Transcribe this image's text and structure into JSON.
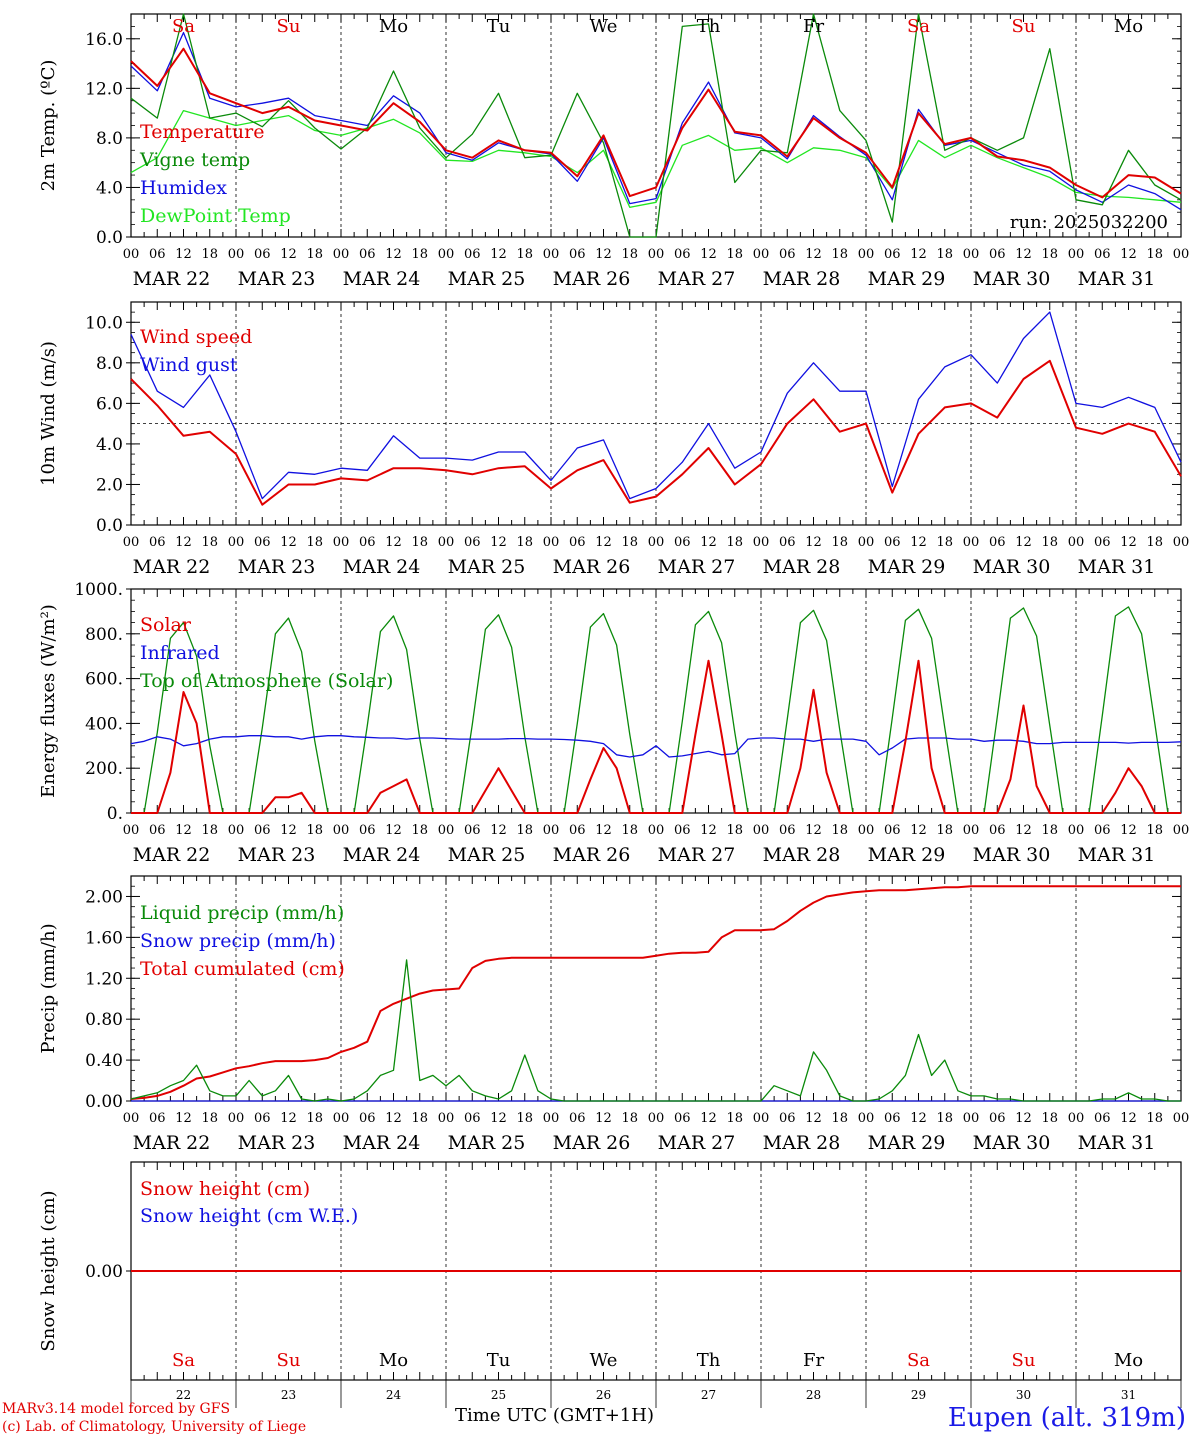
{
  "colors": {
    "red": "#e00000",
    "blue": "#1010e0",
    "green": "#0a8a0a",
    "lightgreen": "#22e622",
    "grid": "#000000"
  },
  "run_label": "run: 2025032200",
  "dates": [
    "MAR 22",
    "MAR 23",
    "MAR 24",
    "MAR 25",
    "MAR 26",
    "MAR 27",
    "MAR 28",
    "MAR 29",
    "MAR 30",
    "MAR 31"
  ],
  "weekdays": [
    "Sa",
    "Su",
    "Mo",
    "Tu",
    "We",
    "Th",
    "Fr",
    "Sa",
    "Su",
    "Mo"
  ],
  "weekday_colors": [
    "red",
    "red",
    "black",
    "black",
    "black",
    "black",
    "black",
    "red",
    "red",
    "black"
  ],
  "hour_ticks": [
    "00",
    "06",
    "12",
    "18"
  ],
  "bottom_day_numbers": [
    "22",
    "23",
    "24",
    "25",
    "26",
    "27",
    "28",
    "29",
    "30",
    "31"
  ],
  "footer": {
    "model_line1": "MARv3.14 model forced by GFS",
    "model_line2": "(c) Lab. of Climatology, University of Liege",
    "axis_title": "Time UTC (GMT+1H)",
    "station": "Eupen (alt. 319m)"
  },
  "chart_data": [
    {
      "type": "line",
      "ylabel": "2m Temp. (ºC)",
      "ylim": [
        0,
        18
      ],
      "yticks": [
        "0.0",
        "4.0",
        "8.0",
        "12.0",
        "16.0"
      ],
      "ytick_values": [
        0,
        4,
        8,
        12,
        16
      ],
      "x_hours": [
        0,
        6,
        12,
        18,
        24,
        30,
        36,
        42,
        48,
        54,
        60,
        66,
        72,
        78,
        84,
        90,
        96,
        102,
        108,
        114,
        120,
        126,
        132,
        138,
        144,
        150,
        156,
        162,
        168,
        174,
        180,
        186,
        192,
        198,
        204,
        210,
        216,
        222,
        228,
        234,
        240
      ],
      "series": [
        {
          "name": "Temperature",
          "color": "red",
          "values": [
            14.2,
            12.2,
            15.2,
            11.6,
            10.8,
            10.0,
            10.5,
            9.4,
            9.0,
            8.6,
            10.8,
            9.3,
            7.0,
            6.4,
            7.8,
            7.0,
            6.8,
            4.9,
            8.2,
            3.3,
            4.0,
            8.8,
            11.9,
            8.5,
            8.2,
            6.5,
            9.6,
            8.0,
            6.8,
            4.0,
            10.0,
            7.5,
            8.0,
            6.5,
            6.2,
            5.6,
            4.2,
            3.2,
            5.0,
            4.8,
            3.5
          ]
        },
        {
          "name": "Vigne temp",
          "color": "green",
          "values": [
            11.2,
            9.6,
            18.0,
            9.6,
            10.0,
            8.9,
            11.0,
            8.8,
            7.1,
            8.8,
            13.4,
            8.8,
            6.4,
            8.3,
            11.6,
            6.4,
            6.6,
            11.6,
            7.6,
            0.0,
            0.0,
            17.0,
            17.2,
            4.4,
            7.0,
            6.8,
            18.0,
            10.2,
            7.8,
            1.2,
            18.0,
            7.0,
            8.0,
            7.0,
            8.0,
            15.2,
            3.0,
            2.6,
            7.0,
            4.2,
            3.0
          ]
        },
        {
          "name": "Humidex",
          "color": "blue",
          "values": [
            13.8,
            11.8,
            16.5,
            11.2,
            10.5,
            10.8,
            11.2,
            9.8,
            9.4,
            9.0,
            11.4,
            10.0,
            6.8,
            6.2,
            7.6,
            7.0,
            6.7,
            4.5,
            8.0,
            2.7,
            3.1,
            9.2,
            12.5,
            8.4,
            8.0,
            6.3,
            9.8,
            8.1,
            6.6,
            3.0,
            10.3,
            7.4,
            7.8,
            6.8,
            5.8,
            5.3,
            3.8,
            2.8,
            4.2,
            3.5,
            2.2
          ]
        },
        {
          "name": "DewPoint Temp",
          "color": "lightgreen",
          "values": [
            5.2,
            6.4,
            10.2,
            9.6,
            9.0,
            9.4,
            9.8,
            8.6,
            8.2,
            8.8,
            9.5,
            8.4,
            6.2,
            6.1,
            7.0,
            6.8,
            6.5,
            5.2,
            7.0,
            2.4,
            2.8,
            7.4,
            8.2,
            7.0,
            7.2,
            6.0,
            7.2,
            7.0,
            6.4,
            3.9,
            7.8,
            6.4,
            7.4,
            6.4,
            5.6,
            4.8,
            3.6,
            3.3,
            3.2,
            3.0,
            2.8
          ]
        }
      ]
    },
    {
      "type": "line",
      "ylabel": "10m Wind (m/s)",
      "ylim": [
        0,
        11
      ],
      "yticks": [
        "0.0",
        "2.0",
        "4.0",
        "6.0",
        "8.0",
        "10.0"
      ],
      "ytick_values": [
        0,
        2,
        4,
        6,
        8,
        10
      ],
      "reference_line": 5,
      "x_hours": [
        0,
        6,
        12,
        18,
        24,
        30,
        36,
        42,
        48,
        54,
        60,
        66,
        72,
        78,
        84,
        90,
        96,
        102,
        108,
        114,
        120,
        126,
        132,
        138,
        144,
        150,
        156,
        162,
        168,
        174,
        180,
        186,
        192,
        198,
        204,
        210,
        216,
        222,
        228,
        234,
        240
      ],
      "series": [
        {
          "name": "Wind speed",
          "color": "red",
          "values": [
            7.2,
            5.9,
            4.4,
            4.6,
            3.5,
            1.0,
            2.0,
            2.0,
            2.3,
            2.2,
            2.8,
            2.8,
            2.7,
            2.5,
            2.8,
            2.9,
            1.8,
            2.7,
            3.2,
            1.1,
            1.4,
            2.5,
            3.8,
            2.0,
            3.0,
            5.0,
            6.2,
            4.6,
            5.0,
            1.6,
            4.5,
            5.8,
            6.0,
            5.3,
            7.2,
            8.1,
            4.8,
            4.5,
            5.0,
            4.6,
            2.4
          ]
        },
        {
          "name": "Wind gust",
          "color": "blue",
          "values": [
            9.4,
            6.6,
            5.8,
            7.4,
            4.6,
            1.3,
            2.6,
            2.5,
            2.8,
            2.7,
            4.4,
            3.3,
            3.3,
            3.2,
            3.6,
            3.6,
            2.2,
            3.8,
            4.2,
            1.3,
            1.8,
            3.1,
            5.0,
            2.8,
            3.6,
            6.5,
            8.0,
            6.6,
            6.6,
            1.9,
            6.2,
            7.8,
            8.4,
            7.0,
            9.2,
            10.5,
            6.0,
            5.8,
            6.3,
            5.8,
            3.1
          ]
        }
      ]
    },
    {
      "type": "line",
      "ylabel": "Energy fluxes (W/m²)",
      "ylim": [
        0,
        1000
      ],
      "yticks": [
        "0.",
        "200.",
        "400.",
        "600.",
        "800.",
        "1000."
      ],
      "ytick_values": [
        0,
        200,
        400,
        600,
        800,
        1000
      ],
      "x_hours": [
        0,
        3,
        6,
        9,
        12,
        15,
        18,
        21,
        24,
        27,
        30,
        33,
        36,
        39,
        42,
        45,
        48,
        51,
        54,
        57,
        60,
        63,
        66,
        69,
        72,
        75,
        78,
        81,
        84,
        87,
        90,
        93,
        96,
        99,
        102,
        105,
        108,
        111,
        114,
        117,
        120,
        123,
        126,
        129,
        132,
        135,
        138,
        141,
        144,
        147,
        150,
        153,
        156,
        159,
        162,
        165,
        168,
        171,
        174,
        177,
        180,
        183,
        186,
        189,
        192,
        195,
        198,
        201,
        204,
        207,
        210,
        213,
        216,
        219,
        222,
        225,
        228,
        231,
        234,
        237,
        240
      ],
      "series": [
        {
          "name": "Solar",
          "color": "red",
          "values": [
            0,
            0,
            0,
            180,
            540,
            400,
            0,
            0,
            0,
            0,
            0,
            70,
            70,
            90,
            0,
            0,
            0,
            0,
            0,
            90,
            120,
            150,
            0,
            0,
            0,
            0,
            0,
            100,
            200,
            100,
            0,
            0,
            0,
            0,
            0,
            150,
            290,
            200,
            0,
            0,
            0,
            0,
            0,
            350,
            680,
            350,
            0,
            0,
            0,
            0,
            0,
            200,
            550,
            180,
            0,
            0,
            0,
            0,
            0,
            320,
            680,
            200,
            0,
            0,
            0,
            0,
            0,
            150,
            480,
            120,
            0,
            0,
            0,
            0,
            0,
            90,
            200,
            120,
            0,
            0,
            0
          ]
        },
        {
          "name": "Infrared",
          "color": "blue",
          "values": [
            310,
            320,
            340,
            330,
            300,
            310,
            330,
            340,
            340,
            345,
            345,
            340,
            340,
            330,
            340,
            345,
            345,
            340,
            338,
            335,
            335,
            330,
            335,
            335,
            332,
            330,
            330,
            330,
            330,
            332,
            332,
            330,
            330,
            328,
            325,
            320,
            310,
            260,
            250,
            260,
            300,
            250,
            255,
            265,
            275,
            260,
            265,
            330,
            335,
            335,
            330,
            330,
            320,
            330,
            330,
            330,
            320,
            260,
            290,
            330,
            335,
            335,
            335,
            330,
            330,
            320,
            325,
            325,
            320,
            310,
            310,
            315,
            315,
            315,
            315,
            315,
            312,
            315,
            315,
            315,
            318
          ]
        },
        {
          "name": "Top of Atmosphere (Solar)",
          "color": "green",
          "values": [
            0,
            0,
            360,
            780,
            850,
            700,
            300,
            0,
            0,
            0,
            380,
            800,
            870,
            720,
            320,
            0,
            0,
            0,
            390,
            810,
            880,
            730,
            330,
            0,
            0,
            0,
            395,
            820,
            885,
            740,
            340,
            0,
            0,
            0,
            400,
            830,
            890,
            750,
            350,
            0,
            0,
            0,
            410,
            840,
            900,
            760,
            360,
            0,
            0,
            0,
            420,
            850,
            905,
            770,
            370,
            0,
            0,
            0,
            425,
            860,
            910,
            780,
            380,
            0,
            0,
            0,
            430,
            870,
            915,
            790,
            390,
            0,
            0,
            0,
            435,
            880,
            920,
            800,
            400,
            0,
            0
          ]
        }
      ]
    },
    {
      "type": "line",
      "ylabel": "Precip (mm/h)",
      "ylim": [
        0,
        2.2
      ],
      "yticks": [
        "0.00",
        "0.40",
        "0.80",
        "1.20",
        "1.60",
        "2.00"
      ],
      "ytick_values": [
        0,
        0.4,
        0.8,
        1.2,
        1.6,
        2.0
      ],
      "x_hours": [
        0,
        3,
        6,
        9,
        12,
        15,
        18,
        21,
        24,
        27,
        30,
        33,
        36,
        39,
        42,
        45,
        48,
        51,
        54,
        57,
        60,
        63,
        66,
        69,
        72,
        75,
        78,
        81,
        84,
        87,
        90,
        93,
        96,
        99,
        102,
        105,
        108,
        111,
        114,
        117,
        120,
        123,
        126,
        129,
        132,
        135,
        138,
        141,
        144,
        147,
        150,
        153,
        156,
        159,
        162,
        165,
        168,
        171,
        174,
        177,
        180,
        183,
        186,
        189,
        192,
        195,
        198,
        201,
        204,
        207,
        210,
        213,
        216,
        219,
        222,
        225,
        228,
        231,
        234,
        237,
        240
      ],
      "series": [
        {
          "name": "Liquid precip (mm/h)",
          "color": "green",
          "values": [
            0.02,
            0.05,
            0.08,
            0.15,
            0.2,
            0.35,
            0.1,
            0.05,
            0.05,
            0.2,
            0.05,
            0.1,
            0.25,
            0.02,
            0.0,
            0.02,
            0.0,
            0.02,
            0.1,
            0.25,
            0.3,
            1.38,
            0.2,
            0.25,
            0.15,
            0.25,
            0.1,
            0.05,
            0.02,
            0.1,
            0.45,
            0.1,
            0.02,
            0.0,
            0.0,
            0.0,
            0.0,
            0.0,
            0.0,
            0.0,
            0.0,
            0.0,
            0.0,
            0.0,
            0.0,
            0.0,
            0.0,
            0.0,
            0.0,
            0.15,
            0.1,
            0.05,
            0.48,
            0.3,
            0.05,
            0.0,
            0.0,
            0.02,
            0.1,
            0.25,
            0.65,
            0.25,
            0.4,
            0.1,
            0.05,
            0.05,
            0.02,
            0.02,
            0.0,
            0.0,
            0.0,
            0.0,
            0.0,
            0.0,
            0.02,
            0.02,
            0.08,
            0.02,
            0.02,
            0.0,
            0.0
          ]
        },
        {
          "name": "Snow precip (mm/h)",
          "color": "blue",
          "values": [
            0,
            0,
            0,
            0,
            0,
            0,
            0,
            0,
            0,
            0,
            0,
            0,
            0,
            0,
            0,
            0,
            0,
            0,
            0,
            0,
            0,
            0,
            0,
            0,
            0,
            0,
            0,
            0,
            0,
            0,
            0,
            0,
            0,
            0,
            0,
            0,
            0,
            0,
            0,
            0,
            0,
            0,
            0,
            0,
            0,
            0,
            0,
            0,
            0,
            0,
            0,
            0,
            0,
            0,
            0,
            0,
            0,
            0,
            0,
            0,
            0,
            0,
            0,
            0,
            0,
            0,
            0,
            0,
            0,
            0,
            0,
            0,
            0,
            0,
            0,
            0,
            0,
            0,
            0,
            0,
            0
          ]
        },
        {
          "name": "Total cumulated (cm)",
          "color": "red",
          "values": [
            0.02,
            0.03,
            0.05,
            0.09,
            0.15,
            0.22,
            0.24,
            0.28,
            0.32,
            0.34,
            0.37,
            0.39,
            0.39,
            0.39,
            0.4,
            0.42,
            0.48,
            0.52,
            0.58,
            0.88,
            0.95,
            1.0,
            1.05,
            1.08,
            1.09,
            1.1,
            1.3,
            1.37,
            1.39,
            1.4,
            1.4,
            1.4,
            1.4,
            1.4,
            1.4,
            1.4,
            1.4,
            1.4,
            1.4,
            1.4,
            1.42,
            1.44,
            1.45,
            1.45,
            1.46,
            1.6,
            1.67,
            1.67,
            1.67,
            1.68,
            1.76,
            1.86,
            1.94,
            2.0,
            2.02,
            2.04,
            2.05,
            2.06,
            2.06,
            2.06,
            2.07,
            2.08,
            2.09,
            2.09,
            2.1,
            2.1,
            2.1,
            2.1,
            2.1,
            2.1,
            2.1,
            2.1,
            2.1,
            2.1,
            2.1,
            2.1,
            2.1,
            2.1,
            2.1,
            2.1,
            2.1
          ]
        }
      ]
    },
    {
      "type": "line",
      "ylabel": "Snow height (cm)",
      "ylim": [
        -1,
        1
      ],
      "yticks": [
        "0.00"
      ],
      "ytick_values": [
        0
      ],
      "x_hours": [
        0,
        240
      ],
      "series": [
        {
          "name": "Snow height (cm)",
          "color": "red",
          "values": [
            0,
            0
          ]
        },
        {
          "name": "Snow height (cm W.E.)",
          "color": "blue",
          "values": [
            0,
            0
          ]
        }
      ]
    }
  ]
}
